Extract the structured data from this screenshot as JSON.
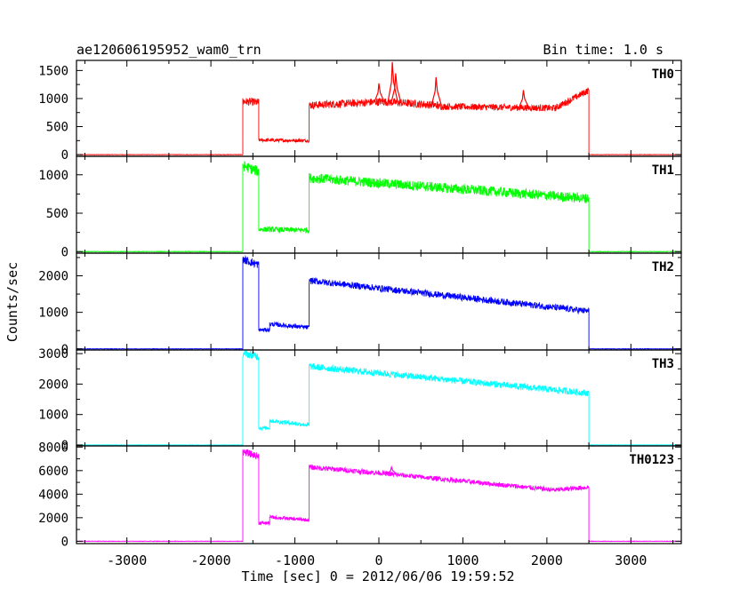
{
  "header": {
    "file_name": "ae120606195952_wam0_trn",
    "bin_time": "Bin time: 1.0 s"
  },
  "axes": {
    "ylabel": "Counts/sec",
    "xlabel": "Time [sec] 0 = 2012/06/06 19:59:52",
    "x_ticks": [
      "-3000",
      "-2000",
      "-1000",
      "0",
      "1000",
      "2000",
      "3000"
    ]
  },
  "chart_data": {
    "type": "line",
    "xlim": [
      -3600,
      3600
    ],
    "x_tick_values": [
      -3000,
      -2000,
      -1000,
      0,
      1000,
      2000,
      3000
    ],
    "panels": [
      {
        "name": "TH0",
        "color": "#ff0000",
        "ylim": [
          -30,
          1680
        ],
        "y_ticks": [
          0,
          500,
          1000,
          1500
        ],
        "segments": [
          {
            "x0": -3600,
            "x1": -1620,
            "y0": 0,
            "y1": 0,
            "noise": 4
          },
          {
            "x0": -1620,
            "x1": -1430,
            "y0": 950,
            "y1": 930,
            "noise": 70
          },
          {
            "x0": -1430,
            "x1": -830,
            "y0": 260,
            "y1": 250,
            "noise": 30
          },
          {
            "x0": -830,
            "x1": 0,
            "y0": 880,
            "y1": 940,
            "noise": 70
          },
          {
            "x0": 0,
            "x1": 700,
            "y0": 950,
            "y1": 880,
            "noise": 70
          },
          {
            "x0": 700,
            "x1": 2100,
            "y0": 860,
            "y1": 830,
            "noise": 60
          },
          {
            "x0": 2100,
            "x1": 2500,
            "y0": 830,
            "y1": 1150,
            "noise": 60
          },
          {
            "x0": 2500,
            "x1": 3600,
            "y0": 0,
            "y1": 0,
            "noise": 4
          }
        ],
        "spikes": [
          {
            "x": 0,
            "y": 1270
          },
          {
            "x": 160,
            "y": 1650
          },
          {
            "x": 200,
            "y": 1450
          },
          {
            "x": 680,
            "y": 1380
          },
          {
            "x": 1720,
            "y": 1150
          }
        ]
      },
      {
        "name": "TH1",
        "color": "#00ff00",
        "ylim": [
          -20,
          1240
        ],
        "y_ticks": [
          0,
          500,
          1000
        ],
        "segments": [
          {
            "x0": -3600,
            "x1": -1620,
            "y0": 0,
            "y1": 0,
            "noise": 4
          },
          {
            "x0": -1620,
            "x1": -1430,
            "y0": 1120,
            "y1": 1040,
            "noise": 70
          },
          {
            "x0": -1430,
            "x1": -830,
            "y0": 290,
            "y1": 280,
            "noise": 35
          },
          {
            "x0": -830,
            "x1": 2500,
            "y0": 960,
            "y1": 690,
            "noise": 65
          },
          {
            "x0": 2500,
            "x1": 3600,
            "y0": 0,
            "y1": 0,
            "noise": 4
          }
        ],
        "spikes": []
      },
      {
        "name": "TH2",
        "color": "#0000ff",
        "ylim": [
          -30,
          2620
        ],
        "y_ticks": [
          0,
          1000,
          2000
        ],
        "segments": [
          {
            "x0": -3600,
            "x1": -1620,
            "y0": 0,
            "y1": 0,
            "noise": 6
          },
          {
            "x0": -1620,
            "x1": -1430,
            "y0": 2450,
            "y1": 2300,
            "noise": 110
          },
          {
            "x0": -1430,
            "x1": -1300,
            "y0": 520,
            "y1": 520,
            "noise": 50
          },
          {
            "x0": -1300,
            "x1": -830,
            "y0": 680,
            "y1": 580,
            "noise": 60
          },
          {
            "x0": -830,
            "x1": 2500,
            "y0": 1870,
            "y1": 1030,
            "noise": 90
          },
          {
            "x0": 2500,
            "x1": 3600,
            "y0": 0,
            "y1": 0,
            "noise": 6
          }
        ],
        "spikes": []
      },
      {
        "name": "TH3",
        "color": "#00ffff",
        "ylim": [
          -30,
          3120
        ],
        "y_ticks": [
          0,
          1000,
          2000,
          3000
        ],
        "segments": [
          {
            "x0": -3600,
            "x1": -1620,
            "y0": 0,
            "y1": 0,
            "noise": 8
          },
          {
            "x0": -1620,
            "x1": -1430,
            "y0": 3020,
            "y1": 2900,
            "noise": 130
          },
          {
            "x0": -1430,
            "x1": -1300,
            "y0": 560,
            "y1": 560,
            "noise": 60
          },
          {
            "x0": -1300,
            "x1": -830,
            "y0": 800,
            "y1": 650,
            "noise": 70
          },
          {
            "x0": -830,
            "x1": 2500,
            "y0": 2580,
            "y1": 1700,
            "noise": 110
          },
          {
            "x0": 2500,
            "x1": 3600,
            "y0": 0,
            "y1": 0,
            "noise": 8
          }
        ],
        "spikes": []
      },
      {
        "name": "TH0123",
        "color": "#ff00ff",
        "ylim": [
          -200,
          8100
        ],
        "y_ticks": [
          0,
          2000,
          4000,
          6000,
          8000
        ],
        "segments": [
          {
            "x0": -3600,
            "x1": -1620,
            "y0": 0,
            "y1": 0,
            "noise": 20
          },
          {
            "x0": -1620,
            "x1": -1430,
            "y0": 7600,
            "y1": 7200,
            "noise": 300
          },
          {
            "x0": -1430,
            "x1": -1300,
            "y0": 1550,
            "y1": 1550,
            "noise": 150
          },
          {
            "x0": -1300,
            "x1": -830,
            "y0": 2050,
            "y1": 1800,
            "noise": 150
          },
          {
            "x0": -830,
            "x1": 0,
            "y0": 6300,
            "y1": 5800,
            "noise": 220
          },
          {
            "x0": 0,
            "x1": 2100,
            "y0": 5800,
            "y1": 4350,
            "noise": 200
          },
          {
            "x0": 2100,
            "x1": 2500,
            "y0": 4350,
            "y1": 4600,
            "noise": 200
          },
          {
            "x0": 2500,
            "x1": 3600,
            "y0": 0,
            "y1": 0,
            "noise": 20
          }
        ],
        "spikes": [
          {
            "x": 150,
            "y": 6300
          },
          {
            "x": 680,
            "y": 5300
          }
        ]
      }
    ]
  }
}
